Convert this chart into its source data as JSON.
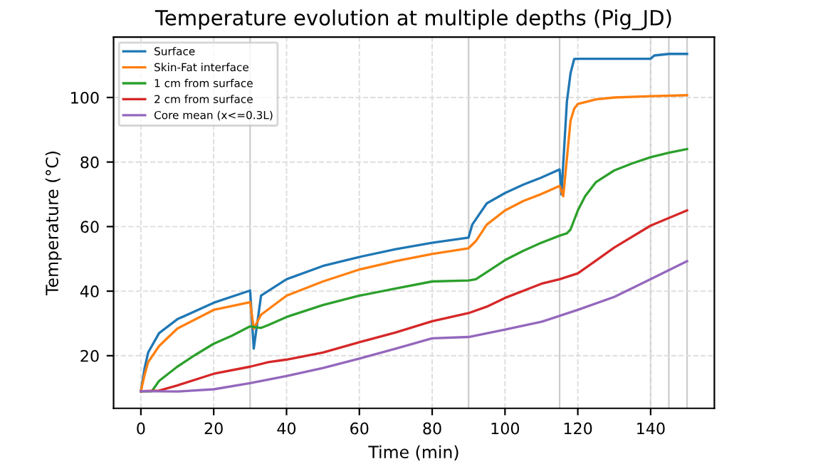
{
  "chart_data": {
    "type": "line",
    "title": "Temperature evolution at multiple depths (Pig_JD)",
    "xlabel": "Time (min)",
    "ylabel": "Temperature (°C)",
    "xlim": [
      -7.5,
      157.5
    ],
    "ylim": [
      3.7,
      118.7
    ],
    "xticks": [
      0,
      20,
      40,
      60,
      80,
      100,
      120,
      140
    ],
    "yticks": [
      20,
      40,
      60,
      80,
      100
    ],
    "grid": true,
    "legend": "top left",
    "line_style": "solid",
    "marker": "none",
    "ref_lines": [
      {
        "axis": "x",
        "value": 30,
        "color": "#cccccc"
      },
      {
        "axis": "x",
        "value": 90,
        "color": "#cccccc"
      },
      {
        "axis": "x",
        "value": 115,
        "color": "#cccccc"
      },
      {
        "axis": "x",
        "value": 140,
        "color": "#cccccc"
      },
      {
        "axis": "x",
        "value": 145,
        "color": "#cccccc"
      },
      {
        "axis": "x",
        "value": 150,
        "color": "#cccccc"
      }
    ],
    "series": [
      {
        "name": "Surface",
        "color": "#1f77b4",
        "x": [
          0,
          1,
          2,
          5,
          10,
          20,
          30,
          31,
          33,
          40,
          50,
          60,
          70,
          80,
          90,
          91,
          95,
          100,
          105,
          110,
          115,
          115.5,
          117,
          118,
          119,
          120,
          140,
          141,
          145,
          150
        ],
        "values": [
          9,
          16,
          21,
          27,
          31.3,
          36.4,
          40.2,
          22.2,
          38.6,
          43.7,
          47.8,
          50.6,
          53,
          55,
          56.6,
          60.6,
          67.2,
          70.4,
          73,
          75.2,
          77.7,
          70,
          98.7,
          107.5,
          111.9,
          112,
          112,
          113,
          113.5,
          113.5
        ]
      },
      {
        "name": "Skin-Fat interface",
        "color": "#ff7f0e",
        "x": [
          0,
          1,
          2,
          5,
          10,
          20,
          30,
          31,
          33,
          40,
          50,
          60,
          70,
          80,
          90,
          92,
          95,
          100,
          105,
          110,
          115,
          116,
          118,
          119,
          120,
          125,
          130,
          140,
          150
        ],
        "values": [
          9,
          14,
          18,
          23,
          28.4,
          34.2,
          36.6,
          28.4,
          32.7,
          38.6,
          43,
          46.7,
          49.3,
          51.5,
          53.3,
          55.5,
          60.6,
          65,
          67.9,
          70.1,
          72.6,
          69.4,
          92.8,
          96.5,
          98,
          99.4,
          100,
          100.4,
          100.7
        ]
      },
      {
        "name": "1 cm from surface",
        "color": "#2ca02c",
        "x": [
          0,
          3,
          5,
          10,
          15,
          20,
          25,
          30,
          33,
          35,
          40,
          50,
          60,
          70,
          80,
          90,
          92,
          95,
          100,
          105,
          110,
          115,
          117,
          118,
          120,
          122,
          125,
          130,
          135,
          140,
          145,
          150
        ],
        "values": [
          9,
          9,
          12.2,
          16.6,
          20.3,
          23.7,
          26.2,
          29.1,
          28.6,
          29.5,
          32,
          35.7,
          38.6,
          40.8,
          43,
          43.3,
          43.7,
          45.9,
          49.6,
          52.5,
          55,
          57.2,
          57.9,
          59.1,
          65,
          69.4,
          73.8,
          77.4,
          79.6,
          81.5,
          82.9,
          84
        ]
      },
      {
        "name": "2 cm from surface",
        "color": "#d62728",
        "x": [
          0,
          5,
          10,
          20,
          30,
          35,
          40,
          50,
          60,
          70,
          80,
          90,
          95,
          100,
          110,
          115,
          120,
          125,
          130,
          140,
          150
        ],
        "values": [
          9,
          9.2,
          10.8,
          14.4,
          16.6,
          18,
          18.8,
          21,
          24.2,
          27.2,
          30.7,
          33.2,
          35.2,
          37.9,
          42.3,
          43.7,
          45.5,
          49.5,
          53.5,
          60.3,
          65
        ]
      },
      {
        "name": "Core mean (x<=0.3L)",
        "color": "#9467bd",
        "x": [
          0,
          10,
          20,
          30,
          40,
          50,
          60,
          70,
          80,
          90,
          100,
          110,
          120,
          130,
          140,
          150
        ],
        "values": [
          9,
          8.9,
          9.6,
          11.5,
          13.7,
          16.2,
          19.1,
          22.2,
          25.4,
          25.8,
          28.1,
          30.5,
          34.2,
          38.2,
          43.7,
          49.3
        ]
      }
    ]
  }
}
